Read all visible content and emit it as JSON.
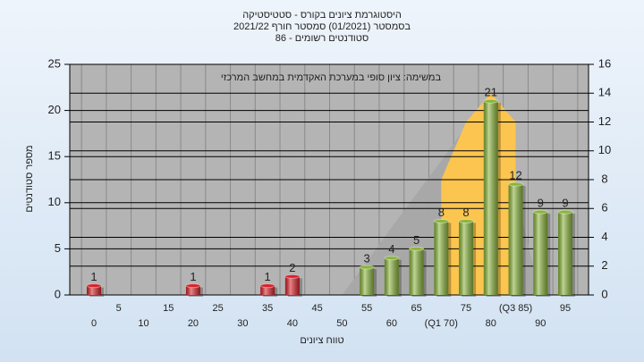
{
  "chart_data": {
    "type": "bar",
    "title_lines": [
      "היסטוגרמת ציונים בקורס - סטטיסטיקה",
      "בסמסטר  (01/2021)  סמסטר חורף 2021/22",
      "סטודנטים רשומים - 86"
    ],
    "annotation": "במשימה: ציון סופי במערכת האקדמית במחשב המרכזי",
    "y_label": "מספר סטודנטים",
    "x_label": "טווח ציונים",
    "categories": [
      "0",
      "5",
      "10",
      "15",
      "20",
      "25",
      "30",
      "35",
      "40",
      "45",
      "50",
      "55",
      "60",
      "65",
      "(Q1 70)",
      "75",
      "80",
      "(Q3 85)",
      "90",
      "95"
    ],
    "values": [
      1,
      null,
      null,
      null,
      1,
      null,
      null,
      1,
      2,
      null,
      null,
      3,
      4,
      5,
      8,
      8,
      21,
      12,
      9,
      9
    ],
    "colors": [
      "#d8222a",
      null,
      null,
      null,
      "#d8222a",
      null,
      null,
      "#d8222a",
      "#d8222a",
      null,
      null,
      "#8ab43c",
      "#8ab43c",
      "#8ab43c",
      "#8ab43c",
      "#8ab43c",
      "#8ab43c",
      "#8ab43c",
      "#8ab43c",
      "#8ab43c"
    ],
    "areas": [
      {
        "color": "#a8a8a8",
        "axis": "y2",
        "values": [
          null,
          null,
          null,
          null,
          null,
          null,
          null,
          null,
          null,
          null,
          0,
          2.3,
          4.7,
          7,
          9.3,
          11.7,
          14,
          7,
          0,
          null
        ]
      },
      {
        "color": "#ffc64a",
        "axis": "y2",
        "values": [
          null,
          null,
          null,
          null,
          null,
          null,
          null,
          null,
          null,
          null,
          null,
          null,
          null,
          null,
          8,
          12,
          14,
          12,
          null,
          null
        ]
      }
    ],
    "ylim": [
      0,
      25
    ],
    "yticks": [
      0,
      5,
      10,
      15,
      20,
      25
    ],
    "y2lim": [
      0,
      16
    ],
    "y2ticks": [
      0,
      2,
      4,
      6,
      8,
      10,
      12,
      14,
      16
    ],
    "grid": true
  }
}
